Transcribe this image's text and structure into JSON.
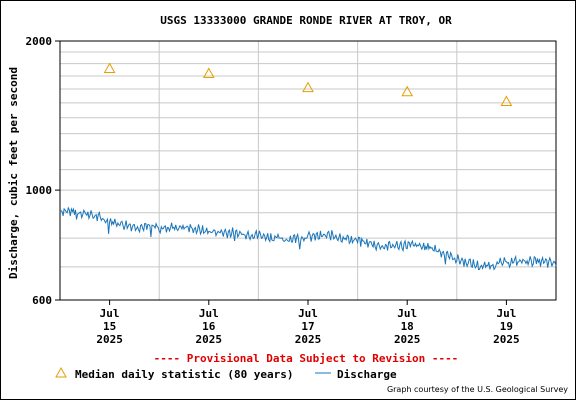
{
  "chart_data": {
    "type": "line",
    "title": "USGS 13333000 GRANDE RONDE RIVER AT TROY, OR",
    "ylabel": "Discharge, cubic feet per second",
    "y_scale": "log",
    "ylim": [
      600,
      2000
    ],
    "y_ticks": [
      {
        "value": 600,
        "label": "600"
      },
      {
        "value": 1000,
        "label": "1000"
      },
      {
        "value": 2000,
        "label": "2000"
      }
    ],
    "y_minor_ticks": [
      700,
      800,
      900,
      1100,
      1200,
      1300,
      1400,
      1500,
      1600,
      1700,
      1800,
      1900
    ],
    "xlim": [
      "2025-07-14 12:00",
      "2025-07-19 12:00"
    ],
    "x_ticks": [
      {
        "value": "2025-07-15",
        "label": [
          "Jul",
          "15",
          "2025"
        ]
      },
      {
        "value": "2025-07-16",
        "label": [
          "Jul",
          "16",
          "2025"
        ]
      },
      {
        "value": "2025-07-17",
        "label": [
          "Jul",
          "17",
          "2025"
        ]
      },
      {
        "value": "2025-07-18",
        "label": [
          "Jul",
          "18",
          "2025"
        ]
      },
      {
        "value": "2025-07-19",
        "label": [
          "Jul",
          "19",
          "2025"
        ]
      }
    ],
    "grid": true,
    "series": [
      {
        "name": "Median daily statistic (80 years)",
        "marker": "triangle",
        "color": "#e69f00",
        "points": [
          {
            "x": "2025-07-15",
            "y": 1760
          },
          {
            "x": "2025-07-16",
            "y": 1720
          },
          {
            "x": "2025-07-17",
            "y": 1610
          },
          {
            "x": "2025-07-18",
            "y": 1580
          },
          {
            "x": "2025-07-19",
            "y": 1510
          }
        ]
      },
      {
        "name": "Discharge",
        "marker": "line",
        "color": "#1a75b8",
        "points": [
          {
            "x": "2025-07-14 12:00",
            "y": 910
          },
          {
            "x": "2025-07-14 18:00",
            "y": 900
          },
          {
            "x": "2025-07-15 00:00",
            "y": 865
          },
          {
            "x": "2025-07-15 06:00",
            "y": 845
          },
          {
            "x": "2025-07-15 12:00",
            "y": 840
          },
          {
            "x": "2025-07-15 18:00",
            "y": 842
          },
          {
            "x": "2025-07-16 00:00",
            "y": 825
          },
          {
            "x": "2025-07-16 06:00",
            "y": 820
          },
          {
            "x": "2025-07-16 12:00",
            "y": 812
          },
          {
            "x": "2025-07-16 18:00",
            "y": 795
          },
          {
            "x": "2025-07-17 00:00",
            "y": 805
          },
          {
            "x": "2025-07-17 06:00",
            "y": 810
          },
          {
            "x": "2025-07-17 12:00",
            "y": 790
          },
          {
            "x": "2025-07-17 18:00",
            "y": 770
          },
          {
            "x": "2025-07-18 00:00",
            "y": 775
          },
          {
            "x": "2025-07-18 06:00",
            "y": 765
          },
          {
            "x": "2025-07-18 12:00",
            "y": 725
          },
          {
            "x": "2025-07-18 18:00",
            "y": 700
          },
          {
            "x": "2025-07-19 00:00",
            "y": 715
          },
          {
            "x": "2025-07-19 06:00",
            "y": 720
          },
          {
            "x": "2025-07-19 12:00",
            "y": 710
          }
        ]
      }
    ],
    "provisional_note": "---- Provisional Data Subject to Revision ----",
    "legend": {
      "placement": "bottom",
      "median_label": "Median daily statistic (80 years)",
      "discharge_label": "Discharge"
    },
    "credit": "Graph courtesy of the U.S. Geological Survey"
  },
  "colors": {
    "axis": "#000000",
    "grid": "#c8c8c8",
    "median": "#e69f00",
    "discharge": "#1a75b8",
    "provisional": "#e00000"
  }
}
